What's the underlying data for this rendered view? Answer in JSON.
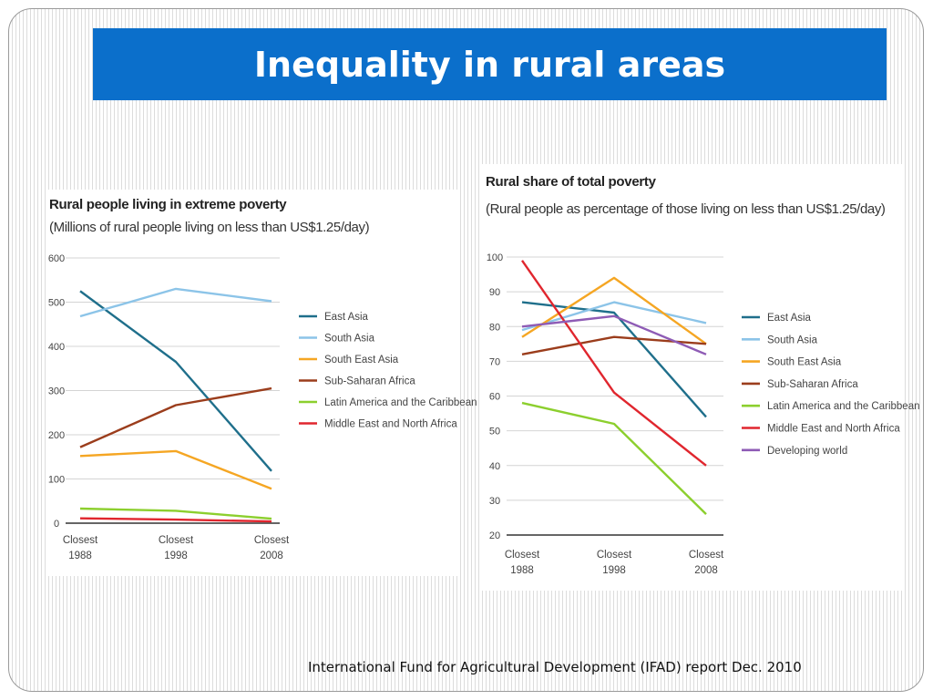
{
  "slide": {
    "title": "Inequality in rural areas",
    "source": "International Fund for Agricultural Development (IFAD) report Dec. 2010"
  },
  "chart_data": [
    {
      "type": "line",
      "title": "Rural people living in extreme poverty",
      "subtitle": "(Millions of rural people living on less than US$1.25/day)",
      "categories": [
        "Closest 1988",
        "Closest 1998",
        "Closest 2008"
      ],
      "category_lines": [
        [
          "Closest",
          "1988"
        ],
        [
          "Closest",
          "1998"
        ],
        [
          "Closest",
          "2008"
        ]
      ],
      "ylim": [
        0,
        600
      ],
      "yticks": [
        0,
        100,
        200,
        300,
        400,
        500,
        600
      ],
      "grid": true,
      "legend_position": "right",
      "series": [
        {
          "name": "East Asia",
          "color": "#1f6f8b",
          "values": [
            525,
            365,
            118
          ]
        },
        {
          "name": "South Asia",
          "color": "#8cc4e8",
          "values": [
            468,
            530,
            502
          ]
        },
        {
          "name": "South East Asia",
          "color": "#f5a623",
          "values": [
            152,
            163,
            78
          ]
        },
        {
          "name": "Sub-Saharan Africa",
          "color": "#9b3d1c",
          "values": [
            172,
            267,
            305
          ]
        },
        {
          "name": "Latin America and the Caribbean",
          "color": "#8ccf2e",
          "values": [
            33,
            28,
            10
          ]
        },
        {
          "name": "Middle East and North Africa",
          "color": "#e0262e",
          "values": [
            11,
            8,
            4
          ]
        }
      ]
    },
    {
      "type": "line",
      "title": "Rural share of total poverty",
      "subtitle": "(Rural people as percentage of those living on less than US$1.25/day)",
      "categories": [
        "Closest 1988",
        "Closest 1998",
        "Closest 2008"
      ],
      "category_lines": [
        [
          "Closest",
          "1988"
        ],
        [
          "Closest",
          "1998"
        ],
        [
          "Closest",
          "2008"
        ]
      ],
      "ylim": [
        20,
        100
      ],
      "yticks": [
        20,
        30,
        40,
        50,
        60,
        70,
        80,
        90,
        100
      ],
      "grid": true,
      "legend_position": "right",
      "series": [
        {
          "name": "East Asia",
          "color": "#1f6f8b",
          "values": [
            87,
            84,
            54
          ]
        },
        {
          "name": "South Asia",
          "color": "#8cc4e8",
          "values": [
            79,
            87,
            81
          ]
        },
        {
          "name": "South East Asia",
          "color": "#f5a623",
          "values": [
            77,
            94,
            75
          ]
        },
        {
          "name": "Sub-Saharan Africa",
          "color": "#9b3d1c",
          "values": [
            72,
            77,
            75
          ]
        },
        {
          "name": "Latin America and the Caribbean",
          "color": "#8ccf2e",
          "values": [
            58,
            52,
            26
          ]
        },
        {
          "name": "Middle East and North Africa",
          "color": "#e0262e",
          "values": [
            99,
            61,
            40
          ]
        },
        {
          "name": "Developing world",
          "color": "#8e5bb5",
          "values": [
            80,
            83,
            72
          ]
        }
      ]
    }
  ]
}
